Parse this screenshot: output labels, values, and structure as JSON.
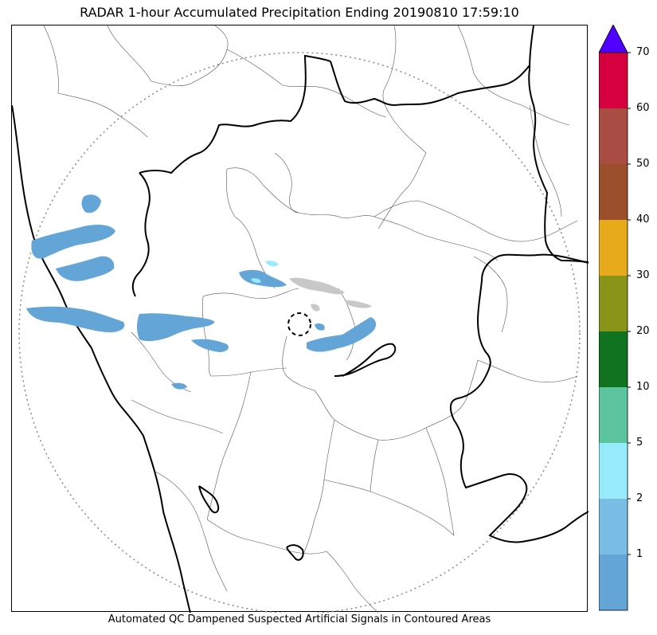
{
  "title": "RADAR 1-hour Accumulated Precipitation Ending 20190810 17:59:10",
  "footer": "Automated QC Dampened Suspected Artificial Signals in Contoured Areas",
  "colorbar": {
    "levels": [
      {
        "value": "",
        "color": "#64a5d7"
      },
      {
        "value": "1",
        "color": "#78bde4"
      },
      {
        "value": "2",
        "color": "#97ecfc"
      },
      {
        "value": "5",
        "color": "#5cc59d"
      },
      {
        "value": "10",
        "color": "#0f7320"
      },
      {
        "value": "20",
        "color": "#8a9419"
      },
      {
        "value": "30",
        "color": "#e7aa1b"
      },
      {
        "value": "40",
        "color": "#9b4f2a"
      },
      {
        "value": "50",
        "color": "#a84c44"
      },
      {
        "value": "60",
        "color": "#d6003f"
      },
      {
        "value": "70",
        "color": ""
      }
    ],
    "extend_color": "#5000ff"
  },
  "colors": {
    "coastline": "#000000",
    "district_lines": "#555555",
    "range_ring": "#888888",
    "artificial_signal": "#c8c8c8"
  }
}
